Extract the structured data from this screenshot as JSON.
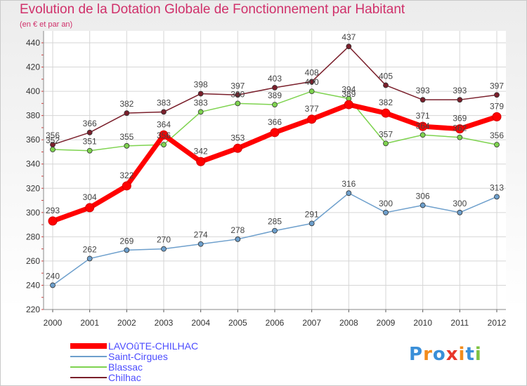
{
  "chart_data": {
    "type": "line",
    "title": "Evolution de la Dotation Globale de Fonctionnement par Habitant",
    "subtitle": "(en € et par an)",
    "xlabel": "",
    "ylabel": "",
    "categories": [
      "2000",
      "2001",
      "2002",
      "2003",
      "2004",
      "2005",
      "2006",
      "2007",
      "2008",
      "2009",
      "2010",
      "2011",
      "2012"
    ],
    "ylim": [
      220,
      440
    ],
    "yticks": [
      220,
      240,
      260,
      280,
      300,
      320,
      340,
      360,
      380,
      400,
      420,
      440
    ],
    "grid": true,
    "legend_position": "bottom-left",
    "series": [
      {
        "name": "Chilhac",
        "color": "#7a1f2b",
        "values": [
          356,
          366,
          382,
          383,
          398,
          397,
          403,
          408,
          437,
          405,
          393,
          393,
          397
        ]
      },
      {
        "name": "Blassac",
        "color": "#7ed34f",
        "values": [
          352,
          351,
          355,
          356,
          383,
          390,
          389,
          400,
          394,
          357,
          364,
          362,
          356
        ]
      },
      {
        "name": "Saint-Cirgues",
        "color": "#6d9fcc",
        "values": [
          240,
          262,
          269,
          270,
          274,
          278,
          285,
          291,
          316,
          300,
          306,
          300,
          313
        ]
      },
      {
        "name": "LAVOûTE-CHILHAC",
        "color": "#ff0000",
        "values": [
          293,
          304,
          322,
          364,
          342,
          353,
          366,
          377,
          389,
          382,
          371,
          369,
          379
        ]
      }
    ],
    "legend_order": [
      "LAVOûTE-CHILHAC",
      "Saint-Cirgues",
      "Blassac",
      "Chilhac"
    ]
  },
  "logo": {
    "text": "Proxiti",
    "letters": [
      "P",
      "r",
      "o",
      "x",
      "i",
      "t",
      "i"
    ],
    "colors": [
      "#3a8fd8",
      "#f28c1c",
      "#3a8fd8",
      "#e8362a",
      "#f28c1c",
      "#3a8fd8",
      "#7ec242"
    ]
  }
}
